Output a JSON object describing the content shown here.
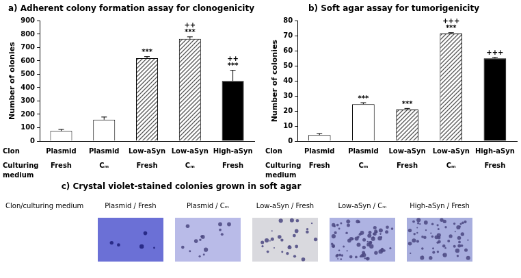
{
  "chart_data": [
    {
      "type": "bar",
      "title": "a) Adherent colony formation assay for clonogenicity",
      "y_label": "Number of olonies",
      "row_labels": [
        "Clon",
        "Culturing medium"
      ],
      "categories": [
        "Plasmid",
        "Plasmid",
        "Low-aSyn",
        "Low-aSyn",
        "High-aSyn"
      ],
      "medium": [
        "Fresh",
        "Cₘ",
        "Fresh",
        "Cₘ",
        "Fresh"
      ],
      "values": [
        75,
        160,
        620,
        765,
        450
      ],
      "errors": [
        12,
        20,
        12,
        15,
        80
      ],
      "colors": [
        "#ffffff",
        "#ffffff",
        "#595959",
        "#595959",
        "#000000"
      ],
      "annotations": [
        null,
        null,
        [
          "***"
        ],
        [
          "++",
          "***"
        ],
        [
          "++",
          "***"
        ]
      ],
      "ylim": [
        0,
        900
      ],
      "yticks": [
        0,
        100,
        200,
        300,
        400,
        500,
        600,
        700,
        800,
        900
      ],
      "grid": false
    },
    {
      "type": "bar",
      "title": "b) Soft agar assay for tumorigenicity",
      "y_label": "Number of colonies",
      "row_labels": [
        "Clon",
        "Culturing medium"
      ],
      "categories": [
        "Plasmid",
        "Plasmid",
        "Low-aSyn",
        "Low-aSyn",
        "High-aSyn"
      ],
      "medium": [
        "Fresh",
        "Cₘ",
        "Fresh",
        "Cₘ",
        "Fresh"
      ],
      "values": [
        4,
        24.5,
        21,
        71.5,
        55
      ],
      "errors": [
        1,
        1,
        0.7,
        0.6,
        0.7
      ],
      "colors": [
        "#ffffff",
        "#ffffff",
        "#595959",
        "#595959",
        "#000000"
      ],
      "annotations": [
        null,
        [
          "***"
        ],
        [
          "***"
        ],
        [
          "+++",
          "***"
        ],
        [
          "+++"
        ]
      ],
      "ylim": [
        0,
        80
      ],
      "yticks": [
        0,
        10,
        20,
        30,
        40,
        50,
        60,
        70,
        80
      ],
      "grid": false
    }
  ],
  "panel_c": {
    "title": "c) Crystal violet-stained colonies grown in soft agar",
    "header": "Clon/culturing medium",
    "images": [
      "Plasmid / Fresh",
      "Plasmid / Cₘ",
      "Low-aSyn / Fresh",
      "Low-aSyn / Cₘ",
      "High-aSyn / Fresh"
    ]
  }
}
